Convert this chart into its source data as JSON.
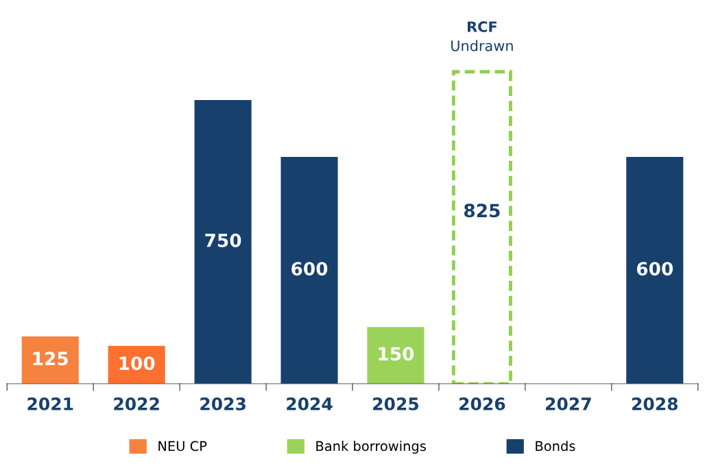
{
  "chart_data": {
    "type": "bar",
    "data_labels": true,
    "legend": "bottom",
    "grid": false,
    "categories": [
      "2021",
      "2022",
      "2023",
      "2024",
      "2025",
      "2026",
      "2027",
      "2028"
    ],
    "series": [
      {
        "name": "NEU CP",
        "color": "#f5823f",
        "colors": [
          "#f5823f",
          "#ff6f30",
          null,
          null,
          null,
          null,
          null,
          null
        ],
        "values": [
          125,
          100,
          null,
          null,
          null,
          null,
          null,
          null
        ]
      },
      {
        "name": "Bank borrowings",
        "color": "#9bd35a",
        "values": [
          null,
          null,
          null,
          null,
          150,
          null,
          null,
          null
        ]
      },
      {
        "name": "Bonds",
        "color": "#17406d",
        "values": [
          null,
          null,
          750,
          600,
          null,
          null,
          null,
          600
        ]
      },
      {
        "color": "#8fd14f",
        "line_style": "dashed",
        "values": [
          null,
          null,
          null,
          null,
          null,
          825,
          null,
          null
        ]
      }
    ],
    "annotations": [
      {
        "text": "RCF",
        "x": "2026",
        "y": 825
      },
      {
        "text": "Undrawn",
        "x": "2026",
        "y": 825
      }
    ]
  }
}
